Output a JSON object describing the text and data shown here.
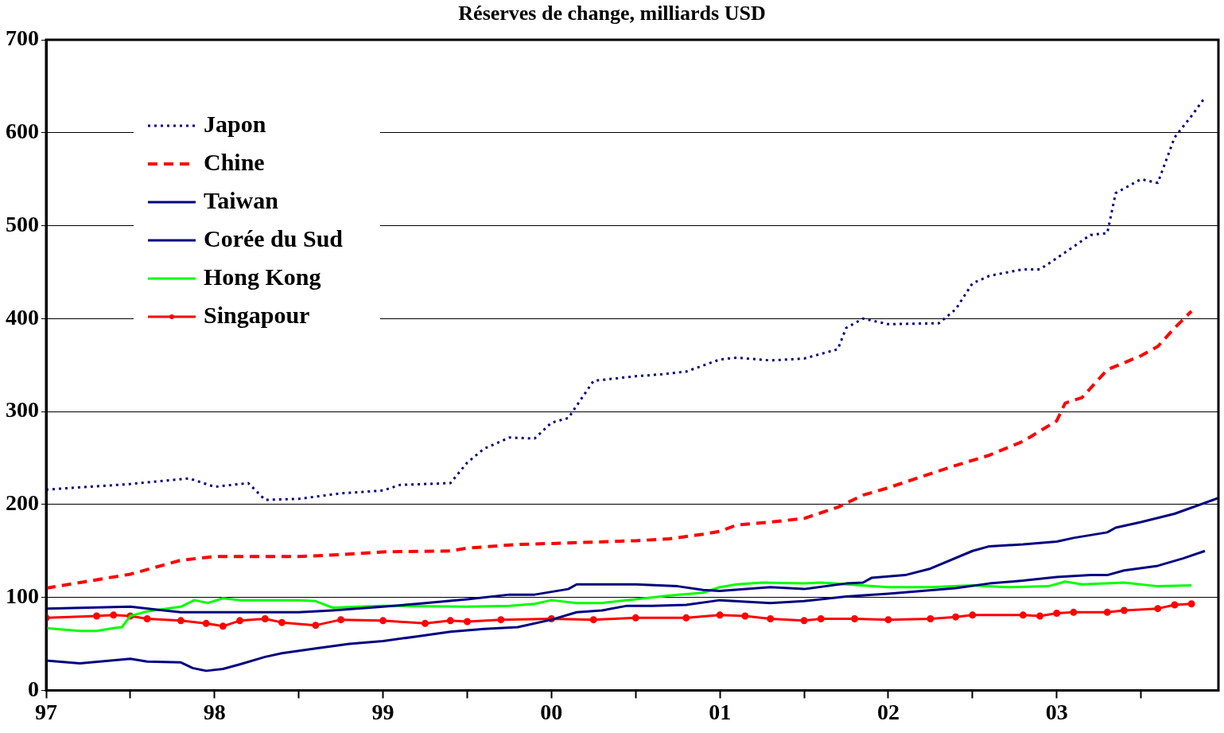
{
  "chart_data": {
    "type": "line",
    "title": "Réserves de change, milliards USD",
    "xlim": [
      1997,
      2003.96
    ],
    "xticks": [
      {
        "value": 1997,
        "label": "97"
      },
      {
        "value": 1997.5,
        "label": null
      },
      {
        "value": 1998,
        "label": "98"
      },
      {
        "value": 1998.5,
        "label": null
      },
      {
        "value": 1999,
        "label": "99"
      },
      {
        "value": 1999.5,
        "label": null
      },
      {
        "value": 2000,
        "label": "00"
      },
      {
        "value": 2000.5,
        "label": null
      },
      {
        "value": 2001,
        "label": "01"
      },
      {
        "value": 2001.5,
        "label": null
      },
      {
        "value": 2002,
        "label": "02"
      },
      {
        "value": 2002.5,
        "label": null
      },
      {
        "value": 2003,
        "label": "03"
      },
      {
        "value": 2003.5,
        "label": null
      }
    ],
    "ylim": [
      0,
      700
    ],
    "yticks": [
      0,
      100,
      200,
      300,
      400,
      500,
      600,
      700
    ],
    "grid": "y",
    "legend": "top left",
    "series": [
      {
        "name": "Japon",
        "color": "#000080",
        "line_style": "dotted",
        "marker": "none",
        "x": [
          1997.0,
          1997.5,
          1997.85,
          1998.0,
          1998.2,
          1998.3,
          1998.5,
          1998.75,
          1999.0,
          1999.1,
          1999.4,
          1999.5,
          1999.6,
          1999.75,
          1999.9,
          2000.0,
          2000.1,
          2000.25,
          2000.5,
          2000.65,
          2000.8,
          2001.0,
          2001.1,
          2001.3,
          2001.5,
          2001.7,
          2001.75,
          2001.85,
          2002.0,
          2002.3,
          2002.4,
          2002.5,
          2002.6,
          2002.8,
          2002.9,
          2003.0,
          2003.2,
          2003.3,
          2003.35,
          2003.5,
          2003.6,
          2003.7,
          2003.8,
          2003.88
        ],
        "values": [
          216,
          222,
          228,
          219,
          223,
          205,
          206,
          212,
          215,
          221,
          223,
          245,
          260,
          272,
          271,
          288,
          293,
          333,
          338,
          340,
          343,
          356,
          358,
          355,
          357,
          367,
          390,
          400,
          394,
          395,
          410,
          438,
          446,
          453,
          453,
          465,
          490,
          492,
          535,
          550,
          546,
          595,
          618,
          638
        ]
      },
      {
        "name": "Chine",
        "color": "#ff0000",
        "line_style": "dashed",
        "marker": "none",
        "x": [
          1997.0,
          1997.5,
          1997.8,
          1998.0,
          1998.5,
          1998.75,
          1999.0,
          1999.4,
          1999.5,
          1999.8,
          2000.0,
          2000.5,
          2000.7,
          2000.9,
          2001.0,
          2001.1,
          2001.3,
          2001.5,
          2001.7,
          2001.85,
          2002.0,
          2002.2,
          2002.4,
          2002.6,
          2002.8,
          2003.0,
          2003.05,
          2003.15,
          2003.3,
          2003.5,
          2003.6,
          2003.7,
          2003.8
        ],
        "values": [
          110,
          125,
          140,
          144,
          144,
          146,
          149,
          150,
          153,
          157,
          158,
          161,
          163,
          168,
          171,
          178,
          181,
          185,
          197,
          210,
          218,
          230,
          242,
          253,
          268,
          290,
          309,
          315,
          345,
          360,
          370,
          390,
          408
        ]
      },
      {
        "name": "Taiwan",
        "color": "#000080",
        "line_style": "solid",
        "marker": "none",
        "x": [
          1997.0,
          1997.5,
          1997.7,
          1997.8,
          1998.0,
          1998.5,
          1998.7,
          1999.0,
          1999.2,
          1999.5,
          1999.75,
          1999.9,
          2000.1,
          2000.15,
          2000.5,
          2000.75,
          2000.9,
          2001.0,
          2001.3,
          2001.5,
          2001.75,
          2001.85,
          2001.9,
          2002.1,
          2002.25,
          2002.5,
          2002.6,
          2002.8,
          2003.0,
          2003.1,
          2003.3,
          2003.35,
          2003.5,
          2003.7,
          2003.96
        ],
        "values": [
          88,
          90,
          86,
          84,
          84,
          84,
          86,
          90,
          93,
          98,
          103,
          103,
          109,
          114,
          114,
          112,
          108,
          107,
          111,
          109,
          115,
          116,
          121,
          124,
          131,
          150,
          155,
          157,
          160,
          164,
          170,
          175,
          181,
          190,
          207
        ]
      },
      {
        "name": "Corée du Sud",
        "color": "#000080",
        "line_style": "solid",
        "marker": "none",
        "x": [
          1997.0,
          1997.2,
          1997.5,
          1997.6,
          1997.8,
          1997.87,
          1997.95,
          1998.05,
          1998.15,
          1998.3,
          1998.4,
          1998.6,
          1998.8,
          1999.0,
          1999.2,
          1999.4,
          1999.6,
          1999.8,
          2000.0,
          2000.15,
          2000.3,
          2000.45,
          2000.6,
          2000.8,
          2001.0,
          2001.3,
          2001.5,
          2001.75,
          2002.0,
          2002.4,
          2002.6,
          2002.8,
          2003.0,
          2003.2,
          2003.3,
          2003.4,
          2003.6,
          2003.75,
          2003.88
        ],
        "values": [
          32,
          29,
          34,
          31,
          30,
          24,
          21,
          23,
          28,
          36,
          40,
          45,
          50,
          53,
          58,
          63,
          66,
          68,
          76,
          84,
          86,
          91,
          91,
          92,
          97,
          94,
          96,
          101,
          104,
          110,
          115,
          118,
          122,
          124,
          124,
          129,
          134,
          142,
          150
        ]
      },
      {
        "name": "Hong Kong",
        "color": "#00ff00",
        "line_style": "solid",
        "marker": "none",
        "x": [
          1997.0,
          1997.2,
          1997.3,
          1997.4,
          1997.45,
          1997.5,
          1997.6,
          1997.8,
          1997.88,
          1997.96,
          1998.05,
          1998.15,
          1998.5,
          1998.6,
          1998.7,
          1999.0,
          1999.5,
          1999.75,
          1999.9,
          2000.0,
          2000.15,
          2000.3,
          2000.5,
          2000.7,
          2000.9,
          2001.0,
          2001.1,
          2001.25,
          2001.5,
          2001.6,
          2001.75,
          2002.0,
          2002.25,
          2002.5,
          2002.7,
          2002.95,
          2003.05,
          2003.15,
          2003.4,
          2003.6,
          2003.8
        ],
        "values": [
          67,
          64,
          64,
          67,
          68,
          80,
          85,
          90,
          97,
          94,
          99,
          97,
          97,
          96,
          89,
          91,
          90,
          91,
          93,
          97,
          94,
          94,
          98,
          102,
          105,
          111,
          114,
          116,
          115,
          116,
          114,
          111,
          111,
          113,
          111,
          112,
          117,
          114,
          116,
          112,
          113
        ]
      },
      {
        "name": "Singapour",
        "color": "#ff0000",
        "line_style": "solid",
        "marker": "circle",
        "x": [
          1997.0,
          1997.3,
          1997.4,
          1997.5,
          1997.6,
          1997.8,
          1997.95,
          1998.05,
          1998.15,
          1998.3,
          1998.4,
          1998.6,
          1998.75,
          1999.0,
          1999.25,
          1999.4,
          1999.5,
          1999.7,
          2000.0,
          2000.25,
          2000.5,
          2000.8,
          2001.0,
          2001.15,
          2001.3,
          2001.5,
          2001.6,
          2001.8,
          2002.0,
          2002.25,
          2002.4,
          2002.5,
          2002.8,
          2002.9,
          2003.0,
          2003.1,
          2003.3,
          2003.4,
          2003.6,
          2003.7,
          2003.8
        ],
        "values": [
          78,
          80,
          81,
          80,
          77,
          75,
          72,
          69,
          75,
          77,
          73,
          70,
          76,
          75,
          72,
          75,
          74,
          76,
          77,
          76,
          78,
          78,
          81,
          80,
          77,
          75,
          77,
          77,
          76,
          77,
          79,
          81,
          81,
          80,
          83,
          84,
          84,
          86,
          88,
          92,
          93
        ]
      }
    ]
  }
}
